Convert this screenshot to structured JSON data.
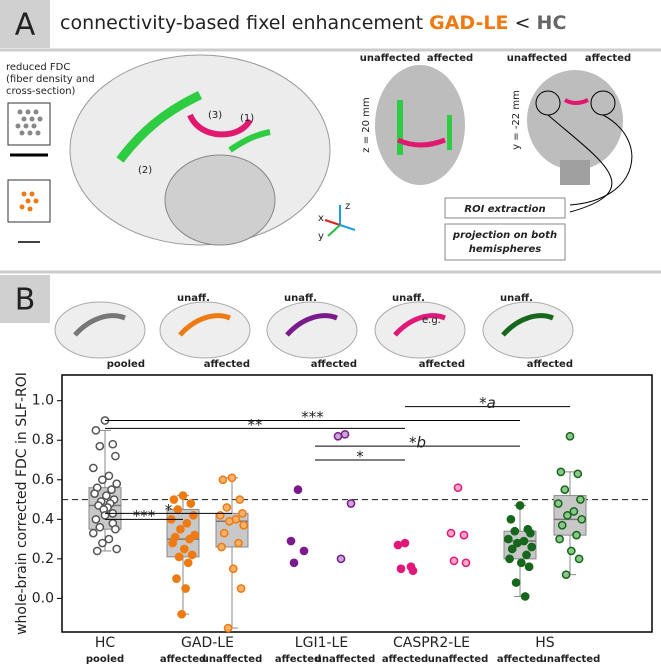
{
  "panel_a": {
    "label": "A",
    "title": {
      "prefix": "connectivity-based fixel enhancement",
      "group1": "GAD-LE",
      "operator": "<",
      "group2": "HC"
    },
    "legend_text": [
      "reduced FDC",
      "(fiber density and",
      "cross-section)"
    ],
    "tract_labels": [
      "(1)",
      "(2)",
      "(3)"
    ],
    "axial": {
      "unaffected": "unaffected",
      "affected": "affected",
      "slice": "z = 20 mm"
    },
    "coronal": {
      "unaffected": "unaffected",
      "affected": "affected",
      "slice": "y = -22 mm"
    },
    "axes": [
      "x",
      "y",
      "z"
    ],
    "steps": [
      "ROI extraction",
      "projection on both",
      "hemispheres"
    ]
  },
  "panel_b": {
    "label": "B",
    "thumbnails": [
      {
        "bottom": "pooled"
      },
      {
        "top": "unaff.",
        "bottom": "affected"
      },
      {
        "top": "unaff.",
        "bottom": "affected"
      },
      {
        "top": "unaff.",
        "bottom": "affected",
        "note": "e.g."
      },
      {
        "top": "unaff.",
        "bottom": "affected"
      }
    ]
  },
  "chart_data": {
    "type": "box",
    "y_label": "whole-brain corrected FDC in SLF-ROI",
    "ylim": [
      -0.17,
      1.13
    ],
    "yticks": [
      0.0,
      0.2,
      0.4,
      0.6,
      0.8,
      1.0
    ],
    "reference_line": 0.5,
    "categories": [
      {
        "label": "HC",
        "subgroups": [
          {
            "label": "pooled",
            "color": "#555555",
            "fill": "#ffffff",
            "box": {
              "min": 0.24,
              "q1": 0.35,
              "median": 0.47,
              "q3": 0.56,
              "max": 0.85
            },
            "points": [
              0.9,
              0.85,
              0.78,
              0.77,
              0.72,
              0.66,
              0.62,
              0.6,
              0.58,
              0.56,
              0.55,
              0.53,
              0.52,
              0.5,
              0.49,
              0.48,
              0.47,
              0.46,
              0.45,
              0.43,
              0.42,
              0.4,
              0.38,
              0.36,
              0.35,
              0.33,
              0.3,
              0.28,
              0.25,
              0.24
            ]
          }
        ]
      },
      {
        "label": "GAD-LE",
        "subgroups": [
          {
            "label": "affected",
            "color": "#ef7a12",
            "fill": "#ef7a12",
            "box": {
              "min": -0.08,
              "q1": 0.21,
              "median": 0.3,
              "q3": 0.45,
              "max": 0.52
            },
            "points": [
              0.52,
              0.5,
              0.48,
              0.45,
              0.42,
              0.4,
              0.38,
              0.35,
              0.32,
              0.31,
              0.3,
              0.28,
              0.25,
              0.22,
              0.21,
              0.18,
              0.1,
              0.05,
              -0.08
            ]
          },
          {
            "label": "unaffected",
            "color": "#ef7a12",
            "fill": "#f6b26b",
            "box": {
              "min": -0.15,
              "q1": 0.26,
              "median": 0.39,
              "q3": 0.43,
              "max": 0.61
            },
            "points": [
              0.61,
              0.6,
              0.5,
              0.46,
              0.43,
              0.42,
              0.4,
              0.39,
              0.37,
              0.33,
              0.28,
              0.26,
              0.15,
              0.05,
              -0.15
            ]
          }
        ]
      },
      {
        "label": "LGI1-LE",
        "subgroups": [
          {
            "label": "affected",
            "color": "#7a1b8c",
            "fill": "#7a1b8c",
            "points": [
              0.55,
              0.29,
              0.24,
              0.18
            ]
          },
          {
            "label": "unaffected",
            "color": "#7a1b8c",
            "fill": "#c9a6d6",
            "points": [
              0.83,
              0.82,
              0.48,
              0.2
            ]
          }
        ]
      },
      {
        "label": "CASPR2-LE",
        "subgroups": [
          {
            "label": "affected",
            "color": "#e0187a",
            "fill": "#e0187a",
            "points": [
              0.28,
              0.27,
              0.16,
              0.15,
              0.14
            ]
          },
          {
            "label": "unaffected",
            "color": "#e0187a",
            "fill": "#f5a8cc",
            "points": [
              0.56,
              0.33,
              0.32,
              0.19,
              0.18
            ]
          }
        ]
      },
      {
        "label": "HS",
        "subgroups": [
          {
            "label": "affected",
            "color": "#16661c",
            "fill": "#16661c",
            "box": {
              "min": 0.01,
              "q1": 0.2,
              "median": 0.29,
              "q3": 0.34,
              "max": 0.47
            },
            "points": [
              0.47,
              0.4,
              0.35,
              0.34,
              0.33,
              0.3,
              0.29,
              0.28,
              0.26,
              0.25,
              0.22,
              0.2,
              0.18,
              0.16,
              0.08,
              0.01
            ]
          },
          {
            "label": "unaffected",
            "color": "#16661c",
            "fill": "#8cc78a",
            "box": {
              "min": 0.12,
              "q1": 0.32,
              "median": 0.4,
              "q3": 0.52,
              "max": 0.64
            },
            "points": [
              0.82,
              0.64,
              0.63,
              0.55,
              0.5,
              0.48,
              0.44,
              0.42,
              0.4,
              0.37,
              0.32,
              0.3,
              0.24,
              0.2,
              0.12
            ]
          }
        ]
      }
    ],
    "annotations": [
      "***",
      "*",
      "**",
      "***",
      "*a",
      "*b",
      "*"
    ]
  }
}
